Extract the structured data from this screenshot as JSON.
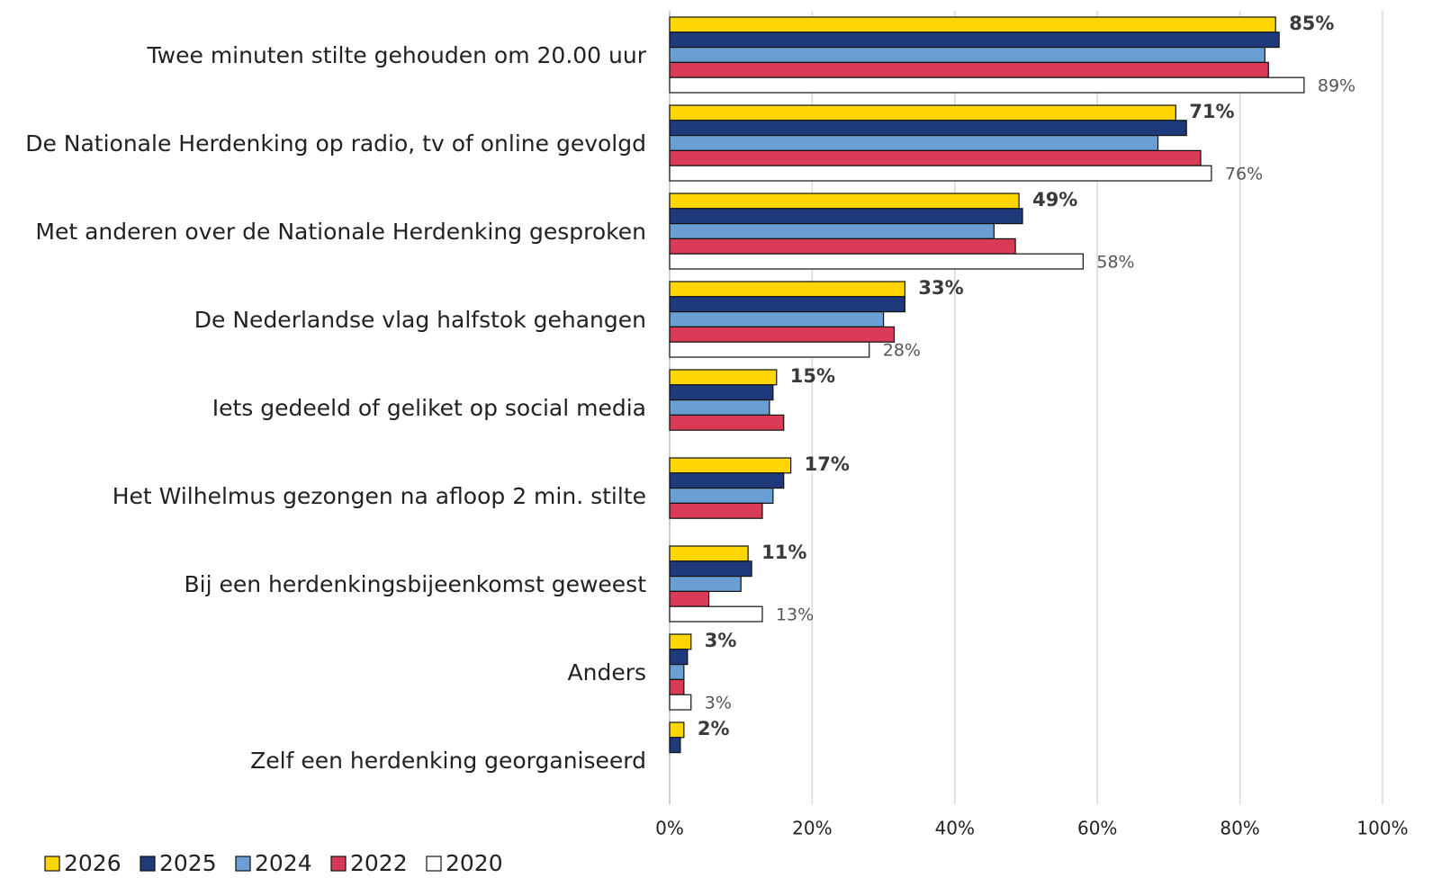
{
  "chart_data": {
    "type": "hbar",
    "categories": [
      "Twee minuten stilte gehouden om 20.00 uur",
      "De Nationale Herdenking op radio, tv of online gevolgd",
      "Met anderen over de Nationale Herdenking gesproken",
      "De Nederlandse vlag halfstok gehangen",
      "Iets gedeeld of geliket op social media",
      "Het Wilhelmus gezongen na afloop 2 min. stilte",
      "Bij een herdenkingsbijeenkomst geweest",
      "Anders",
      "Zelf een herdenking georganiseerd"
    ],
    "series": [
      {
        "name": "2026",
        "color": "#ffd500",
        "values": [
          85,
          71,
          49,
          33,
          15,
          17,
          11,
          3,
          2
        ],
        "value_labels": [
          "85%",
          "71%",
          "49%",
          "33%",
          "15%",
          "17%",
          "11%",
          "3%",
          "2%"
        ],
        "label_style": "bold"
      },
      {
        "name": "2025",
        "color": "#1f3a7a",
        "values": [
          85.5,
          72.5,
          49.5,
          33,
          14.5,
          16,
          11.5,
          2.5,
          1.5
        ]
      },
      {
        "name": "2024",
        "color": "#6a9fd4",
        "values": [
          83.5,
          68.5,
          45.5,
          30,
          14,
          14.5,
          10,
          2,
          null
        ]
      },
      {
        "name": "2022",
        "color": "#d93a55",
        "values": [
          84,
          74.5,
          48.5,
          31.5,
          16,
          13,
          5.5,
          2,
          null
        ]
      },
      {
        "name": "2020",
        "color": "#ffffff",
        "values": [
          89,
          76,
          58,
          28,
          null,
          null,
          13,
          3,
          null
        ],
        "value_labels": [
          "89%",
          "76%",
          "58%",
          "28%",
          null,
          null,
          "13%",
          "3%",
          null
        ],
        "label_style": "thin"
      }
    ],
    "xlim": [
      0,
      100
    ],
    "xticks": [
      {
        "value": 0,
        "label": "0%"
      },
      {
        "value": 20,
        "label": "20%"
      },
      {
        "value": 40,
        "label": "40%"
      },
      {
        "value": 60,
        "label": "60%"
      },
      {
        "value": 80,
        "label": "80%"
      },
      {
        "value": 100,
        "label": "100%"
      }
    ],
    "grid": true,
    "legend": "bottom-left"
  }
}
